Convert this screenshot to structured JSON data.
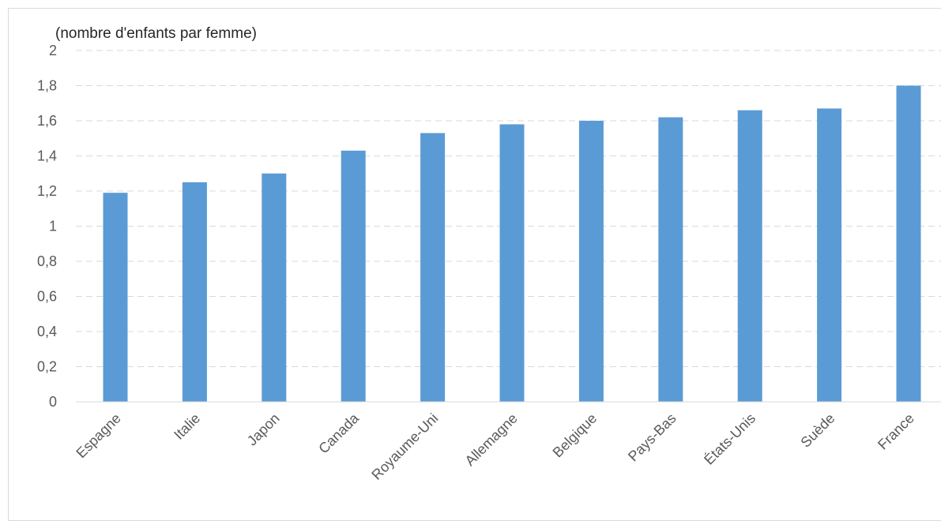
{
  "chart_data": {
    "type": "bar",
    "y_unit_label": "(nombre d'enfants par femme)",
    "categories": [
      "Espagne",
      "Italie",
      "Japon",
      "Canada",
      "Royaume-Uni",
      "Allemagne",
      "Belgique",
      "Pays-Bas",
      "États-Unis",
      "Suède",
      "France"
    ],
    "values": [
      1.19,
      1.25,
      1.3,
      1.43,
      1.53,
      1.58,
      1.6,
      1.62,
      1.66,
      1.67,
      1.8
    ],
    "ylim": [
      0,
      2
    ],
    "y_ticks": [
      0,
      0.2,
      0.4,
      0.6,
      0.8,
      1,
      1.2,
      1.4,
      1.6,
      1.8,
      2
    ],
    "y_tick_labels": [
      "0",
      "0,2",
      "0,4",
      "0,6",
      "0,8",
      "1",
      "1,2",
      "1,4",
      "1,6",
      "1,8",
      "2"
    ],
    "grid": true,
    "legend": "none",
    "bar_color": "#5b9bd5",
    "grid_color": "#d9d9d9"
  }
}
